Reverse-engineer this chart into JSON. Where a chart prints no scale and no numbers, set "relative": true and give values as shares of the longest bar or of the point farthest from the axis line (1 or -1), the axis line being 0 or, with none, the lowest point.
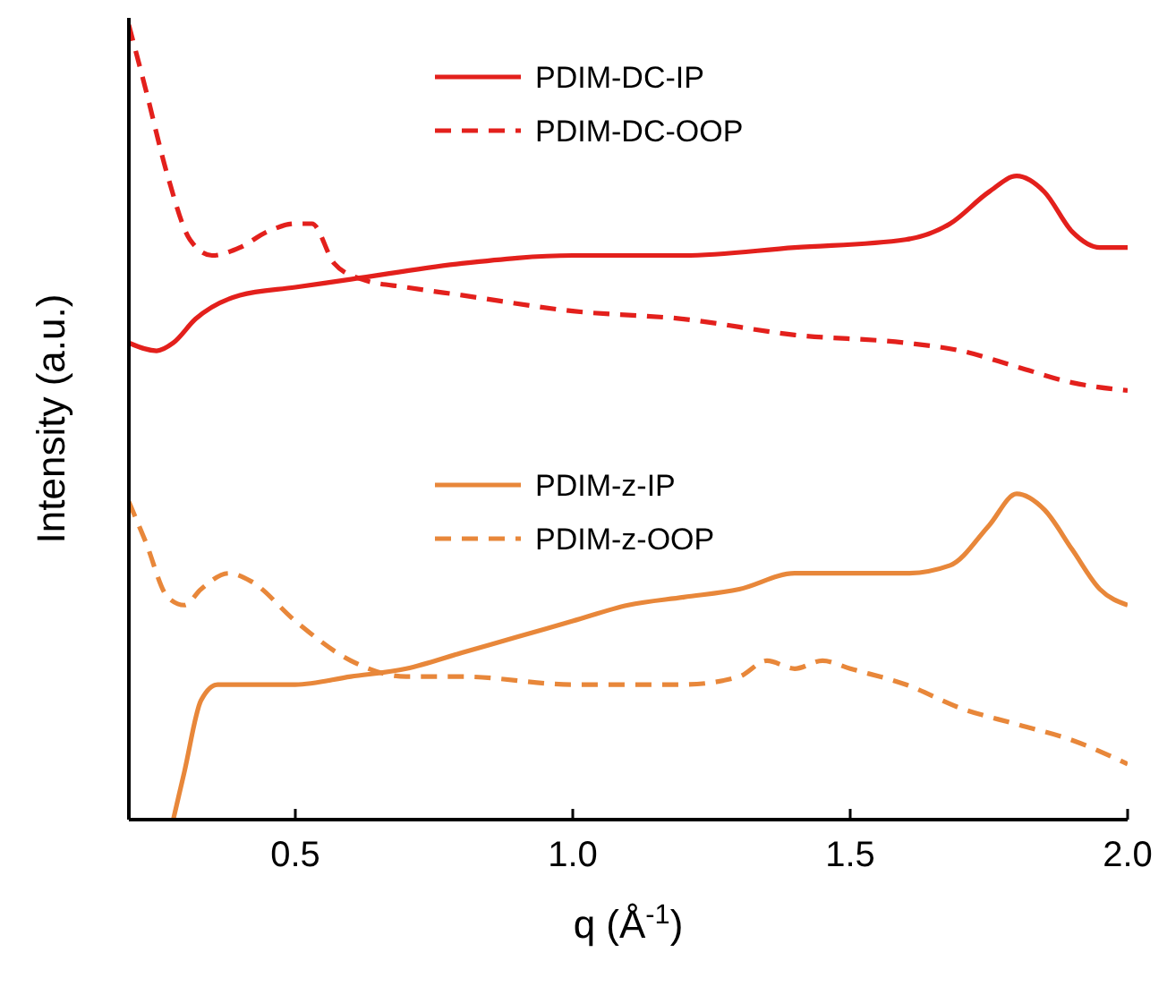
{
  "chart_data": {
    "type": "line",
    "relative": true,
    "xlabel": "q (Å$^{-1}$)",
    "ylabel": "Intensity (a.u.)",
    "xlim": [
      0.2,
      2.0
    ],
    "xticks": [
      0.5,
      {
        "value": 1.0,
        "label": "1.0"
      },
      1.5,
      {
        "value": 2.0,
        "label": "2.0"
      }
    ],
    "legend": "top",
    "grid": false,
    "series": [
      {
        "name": "PDIM-DC-IP",
        "color": "#e3201c",
        "line_style": "solid",
        "x": [
          0.2,
          0.25,
          0.28,
          0.32,
          0.4,
          0.5,
          0.6,
          0.8,
          1.0,
          1.2,
          1.4,
          1.6,
          1.68,
          1.75,
          1.8,
          1.85,
          1.9,
          1.95,
          2.0
        ],
        "values": [
          0.6,
          0.59,
          0.6,
          0.63,
          0.66,
          0.67,
          0.68,
          0.7,
          0.71,
          0.71,
          0.72,
          0.73,
          0.75,
          0.79,
          0.81,
          0.79,
          0.74,
          0.72,
          0.72
        ]
      },
      {
        "name": "PDIM-DC-OOP",
        "color": "#e3201c",
        "line_style": "dashed",
        "x": [
          0.2,
          0.23,
          0.27,
          0.31,
          0.35,
          0.4,
          0.45,
          0.5,
          0.53,
          0.57,
          0.62,
          0.7,
          0.8,
          1.0,
          1.2,
          1.4,
          1.6,
          1.7,
          1.8,
          1.9,
          2.0
        ],
        "values": [
          1.0,
          0.92,
          0.81,
          0.73,
          0.71,
          0.72,
          0.74,
          0.75,
          0.75,
          0.7,
          0.68,
          0.67,
          0.66,
          0.64,
          0.63,
          0.61,
          0.6,
          0.59,
          0.57,
          0.55,
          0.54
        ]
      },
      {
        "name": "PDIM-z-IP",
        "color": "#e8873a",
        "line_style": "solid",
        "x": [
          0.28,
          0.3,
          0.33,
          0.36,
          0.5,
          0.6,
          0.7,
          0.8,
          0.9,
          1.0,
          1.1,
          1.2,
          1.3,
          1.4,
          1.5,
          1.6,
          1.68,
          1.75,
          1.8,
          1.85,
          1.9,
          1.95,
          2.0
        ],
        "values": [
          0.0,
          0.06,
          0.15,
          0.17,
          0.17,
          0.18,
          0.19,
          0.21,
          0.23,
          0.25,
          0.27,
          0.28,
          0.29,
          0.31,
          0.31,
          0.31,
          0.32,
          0.37,
          0.41,
          0.39,
          0.34,
          0.29,
          0.27
        ]
      },
      {
        "name": "PDIM-z-OOP",
        "color": "#e8873a",
        "line_style": "dashed",
        "x": [
          0.2,
          0.23,
          0.27,
          0.3,
          0.33,
          0.38,
          0.42,
          0.5,
          0.6,
          0.7,
          0.8,
          1.0,
          1.1,
          1.2,
          1.3,
          1.35,
          1.4,
          1.45,
          1.5,
          1.6,
          1.7,
          1.8,
          1.9,
          2.0
        ],
        "values": [
          0.4,
          0.35,
          0.28,
          0.27,
          0.29,
          0.31,
          0.3,
          0.25,
          0.2,
          0.18,
          0.18,
          0.17,
          0.17,
          0.17,
          0.18,
          0.2,
          0.19,
          0.2,
          0.19,
          0.17,
          0.14,
          0.12,
          0.1,
          0.07
        ]
      }
    ]
  }
}
